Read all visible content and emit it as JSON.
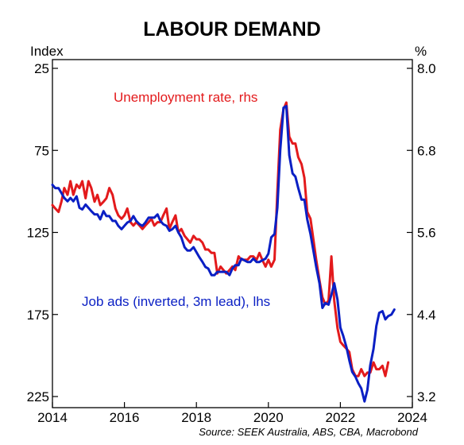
{
  "chart_data": {
    "type": "line",
    "title": "LABOUR DEMAND",
    "y_left_label": "Index",
    "y_right_label": "%",
    "x_ticks": [
      "2014",
      "2016",
      "2018",
      "2020",
      "2022",
      "2024"
    ],
    "x_range": [
      2014,
      2024
    ],
    "y_left_ticks": [
      "25",
      "75",
      "125",
      "175",
      "225"
    ],
    "y_left_range": [
      25,
      225
    ],
    "y_left_inverted": true,
    "y_right_ticks": [
      "8.0",
      "6.8",
      "5.6",
      "4.4",
      "3.2"
    ],
    "y_right_range": [
      3.2,
      8.0
    ],
    "grid": false,
    "source": "Source: SEEK Australia, ABS, CBA, Macrobond",
    "series": [
      {
        "name": "Unemployment rate, rhs",
        "axis": "right",
        "color": "#e31a1c",
        "x": [
          2014.0,
          2014.08,
          2014.17,
          2014.25,
          2014.33,
          2014.42,
          2014.5,
          2014.58,
          2014.67,
          2014.75,
          2014.83,
          2014.92,
          2015.0,
          2015.08,
          2015.17,
          2015.25,
          2015.33,
          2015.42,
          2015.5,
          2015.58,
          2015.67,
          2015.75,
          2015.83,
          2015.92,
          2016.0,
          2016.08,
          2016.17,
          2016.25,
          2016.33,
          2016.42,
          2016.5,
          2016.58,
          2016.67,
          2016.75,
          2016.83,
          2016.92,
          2017.0,
          2017.08,
          2017.17,
          2017.25,
          2017.33,
          2017.42,
          2017.5,
          2017.58,
          2017.67,
          2017.75,
          2017.83,
          2017.92,
          2018.0,
          2018.08,
          2018.17,
          2018.25,
          2018.33,
          2018.42,
          2018.5,
          2018.58,
          2018.67,
          2018.75,
          2018.83,
          2018.92,
          2019.0,
          2019.08,
          2019.17,
          2019.25,
          2019.33,
          2019.42,
          2019.5,
          2019.58,
          2019.67,
          2019.75,
          2019.83,
          2019.92,
          2020.0,
          2020.08,
          2020.17,
          2020.25,
          2020.33,
          2020.42,
          2020.5,
          2020.58,
          2020.67,
          2020.75,
          2020.83,
          2020.92,
          2021.0,
          2021.08,
          2021.17,
          2021.25,
          2021.33,
          2021.42,
          2021.5,
          2021.58,
          2021.67,
          2021.75,
          2021.83,
          2021.92,
          2022.0,
          2022.08,
          2022.17,
          2022.25,
          2022.33,
          2022.42,
          2022.5,
          2022.58,
          2022.67,
          2022.75,
          2022.83,
          2022.92,
          2023.0,
          2023.08,
          2023.17,
          2023.25,
          2023.33
        ],
        "values": [
          6.0,
          5.95,
          5.9,
          6.05,
          6.25,
          6.15,
          6.35,
          6.15,
          6.3,
          6.25,
          6.35,
          6.1,
          6.35,
          6.25,
          6.05,
          6.15,
          6.0,
          6.05,
          6.1,
          6.25,
          6.15,
          5.95,
          5.85,
          5.8,
          5.85,
          5.95,
          5.75,
          5.7,
          5.75,
          5.7,
          5.65,
          5.7,
          5.75,
          5.8,
          5.7,
          5.75,
          5.75,
          5.85,
          5.95,
          5.65,
          5.75,
          5.85,
          5.6,
          5.65,
          5.55,
          5.5,
          5.45,
          5.55,
          5.5,
          5.5,
          5.45,
          5.35,
          5.35,
          5.3,
          5.3,
          5.0,
          5.1,
          5.05,
          5.0,
          5.05,
          5.1,
          5.05,
          5.25,
          5.2,
          5.2,
          5.2,
          5.25,
          5.25,
          5.2,
          5.3,
          5.2,
          5.1,
          5.2,
          5.1,
          5.2,
          6.2,
          7.1,
          7.4,
          7.5,
          7.0,
          6.9,
          6.9,
          6.7,
          6.6,
          6.4,
          5.9,
          5.8,
          5.5,
          5.2,
          4.9,
          4.65,
          4.55,
          4.6,
          5.25,
          4.6,
          4.2,
          4.0,
          3.95,
          3.9,
          3.85,
          3.6,
          3.5,
          3.5,
          3.6,
          3.5,
          3.55,
          3.55,
          3.7,
          3.6,
          3.6,
          3.65,
          3.5,
          3.7
        ]
      },
      {
        "name": "Job ads (inverted, 3m lead), lhs",
        "axis": "left",
        "color": "#0a1fc4",
        "x": [
          2014.0,
          2014.08,
          2014.17,
          2014.25,
          2014.33,
          2014.42,
          2014.5,
          2014.58,
          2014.67,
          2014.75,
          2014.83,
          2014.92,
          2015.0,
          2015.08,
          2015.17,
          2015.25,
          2015.33,
          2015.42,
          2015.5,
          2015.58,
          2015.67,
          2015.75,
          2015.83,
          2015.92,
          2016.0,
          2016.08,
          2016.17,
          2016.25,
          2016.33,
          2016.42,
          2016.5,
          2016.58,
          2016.67,
          2016.75,
          2016.83,
          2016.92,
          2017.0,
          2017.08,
          2017.17,
          2017.25,
          2017.33,
          2017.42,
          2017.5,
          2017.58,
          2017.67,
          2017.75,
          2017.83,
          2017.92,
          2018.0,
          2018.08,
          2018.17,
          2018.25,
          2018.33,
          2018.42,
          2018.5,
          2018.58,
          2018.67,
          2018.75,
          2018.83,
          2018.92,
          2019.0,
          2019.08,
          2019.17,
          2019.25,
          2019.33,
          2019.42,
          2019.5,
          2019.58,
          2019.67,
          2019.75,
          2019.83,
          2019.92,
          2020.0,
          2020.08,
          2020.17,
          2020.25,
          2020.33,
          2020.42,
          2020.5,
          2020.58,
          2020.67,
          2020.75,
          2020.83,
          2020.92,
          2021.0,
          2021.08,
          2021.17,
          2021.25,
          2021.33,
          2021.42,
          2021.5,
          2021.58,
          2021.67,
          2021.75,
          2021.83,
          2021.92,
          2022.0,
          2022.08,
          2022.17,
          2022.25,
          2022.33,
          2022.42,
          2022.5,
          2022.58,
          2022.67,
          2022.75,
          2022.83,
          2022.92,
          2023.0,
          2023.08,
          2023.17,
          2023.25,
          2023.33,
          2023.42,
          2023.5
        ],
        "values": [
          96,
          98,
          98,
          101,
          104,
          106,
          104,
          106,
          103,
          110,
          111,
          108,
          110,
          112,
          114,
          114,
          117,
          112,
          115,
          115,
          118,
          118,
          121,
          123,
          121,
          119,
          118,
          115,
          118,
          120,
          121,
          119,
          116,
          116,
          116,
          114,
          118,
          120,
          121,
          124,
          123,
          121,
          125,
          128,
          134,
          136,
          136,
          134,
          137,
          140,
          143,
          146,
          147,
          151,
          151,
          149,
          149,
          149,
          149,
          151,
          147,
          145,
          145,
          141,
          142,
          143,
          143,
          141,
          143,
          143,
          142,
          141,
          138,
          128,
          126,
          110,
          75,
          49,
          48,
          78,
          89,
          91,
          98,
          105,
          105,
          117,
          126,
          136,
          146,
          156,
          171,
          168,
          169,
          163,
          156,
          166,
          183,
          188,
          195,
          203,
          210,
          213,
          217,
          220,
          228,
          221,
          206,
          196,
          182,
          174,
          173,
          178,
          176,
          175,
          172
        ]
      }
    ]
  }
}
